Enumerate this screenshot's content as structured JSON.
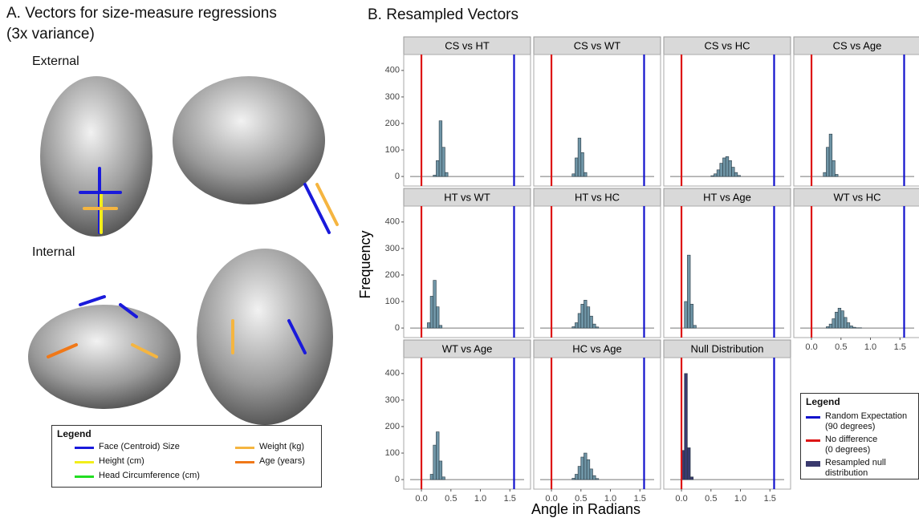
{
  "panel_a": {
    "title": "A. Vectors for size-measure regressions",
    "subtitle": "(3x variance)",
    "views": [
      "External",
      "Internal"
    ],
    "legend": {
      "title": "Legend",
      "items": [
        {
          "label": "Face (Centroid) Size",
          "color": "#1a1adb"
        },
        {
          "label": "Height (cm)",
          "color": "#f2ee1a"
        },
        {
          "label": "Head Circumference (cm)",
          "color": "#22dd22"
        },
        {
          "label": "Weight (kg)",
          "color": "#f5b540"
        },
        {
          "label": "Age (years)",
          "color": "#f07818"
        }
      ]
    }
  },
  "chart_data": {
    "type": "histogram",
    "title": "B. Resampled Vectors",
    "x_label": "Angle in Radians",
    "y_label": "Frequency",
    "xlim": [
      -0.3,
      1.85
    ],
    "xticks": [
      {
        "value": 0,
        "label": "0.0"
      },
      0.5,
      {
        "value": 1,
        "label": "1.0"
      },
      1.5
    ],
    "ylim": [
      -36,
      460
    ],
    "yticks": [
      0,
      100,
      200,
      300,
      400
    ],
    "reference_lines": [
      {
        "name": "Random Expectation\n(90 degrees)",
        "color": "#1111cc",
        "value": 1.5708
      },
      {
        "name": "No difference\n(0 degrees)",
        "color": "#dd1515",
        "value": 0
      }
    ],
    "legend_title": "Legend",
    "facets": [
      {
        "name": "CS vs HT",
        "color": "#6f95a6",
        "bins": [
          0.2,
          0.25,
          0.3,
          0.35,
          0.4,
          0.45
        ],
        "counts": [
          5,
          60,
          210,
          110,
          15
        ]
      },
      {
        "name": "CS vs WT",
        "color": "#6f95a6",
        "bins": [
          0.35,
          0.4,
          0.45,
          0.5,
          0.55,
          0.6
        ],
        "counts": [
          10,
          70,
          145,
          90,
          15
        ]
      },
      {
        "name": "CS vs HC",
        "color": "#6f95a6",
        "bins": [
          0.5,
          0.55,
          0.6,
          0.65,
          0.7,
          0.75,
          0.8,
          0.85,
          0.9,
          0.95,
          1.0
        ],
        "counts": [
          3,
          10,
          25,
          50,
          70,
          75,
          60,
          35,
          15,
          4
        ]
      },
      {
        "name": "CS vs Age",
        "color": "#6f95a6",
        "bins": [
          0.2,
          0.25,
          0.3,
          0.35,
          0.4,
          0.45
        ],
        "counts": [
          15,
          110,
          160,
          60,
          8
        ]
      },
      {
        "name": "HT vs WT",
        "color": "#6f95a6",
        "bins": [
          0.1,
          0.15,
          0.2,
          0.25,
          0.3,
          0.35
        ],
        "counts": [
          20,
          120,
          180,
          80,
          10
        ]
      },
      {
        "name": "HT vs HC",
        "color": "#6f95a6",
        "bins": [
          0.35,
          0.4,
          0.45,
          0.5,
          0.55,
          0.6,
          0.65,
          0.7,
          0.75,
          0.8
        ],
        "counts": [
          5,
          20,
          55,
          90,
          105,
          80,
          45,
          15,
          4
        ]
      },
      {
        "name": "HT vs Age",
        "color": "#6f95a6",
        "bins": [
          0.05,
          0.1,
          0.15,
          0.2,
          0.25
        ],
        "counts": [
          100,
          275,
          90,
          10
        ]
      },
      {
        "name": "WT vs HC",
        "color": "#6f95a6",
        "bins": [
          0.25,
          0.3,
          0.35,
          0.4,
          0.45,
          0.5,
          0.55,
          0.6,
          0.65,
          0.7,
          0.75,
          0.8,
          0.85
        ],
        "counts": [
          5,
          15,
          35,
          60,
          75,
          65,
          40,
          20,
          8,
          3,
          1,
          1
        ]
      },
      {
        "name": "WT vs Age",
        "color": "#6f95a6",
        "bins": [
          0.15,
          0.2,
          0.25,
          0.3,
          0.35,
          0.4
        ],
        "counts": [
          20,
          130,
          180,
          70,
          10
        ]
      },
      {
        "name": "HC vs Age",
        "color": "#6f95a6",
        "bins": [
          0.35,
          0.4,
          0.45,
          0.5,
          0.55,
          0.6,
          0.65,
          0.7,
          0.75,
          0.8
        ],
        "counts": [
          5,
          20,
          50,
          85,
          100,
          75,
          40,
          15,
          4
        ]
      },
      {
        "name": "Null Distribution",
        "color": "#3a3a6e",
        "legend_label": "Resampled null\ndistribution",
        "bins": [
          0,
          0.05,
          0.1,
          0.15,
          0.2
        ],
        "counts": [
          110,
          400,
          120,
          10
        ]
      }
    ]
  }
}
